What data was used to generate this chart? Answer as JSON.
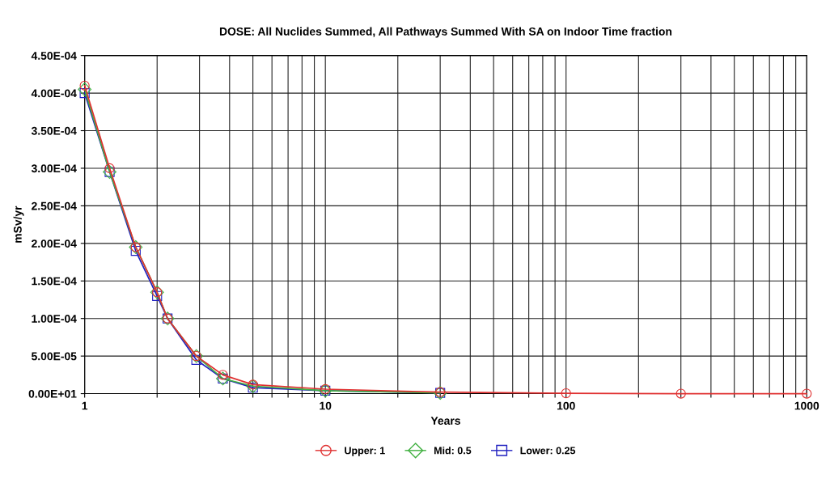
{
  "chart_data": {
    "type": "line",
    "title": "DOSE: All Nuclides Summed, All Pathways Summed With SA on Indoor Time fraction",
    "xlabel": "Years",
    "ylabel": "mSv/yr",
    "log": "x",
    "grid": true,
    "legend": "bottom",
    "xlim": [
      1,
      1000
    ],
    "xticks": [
      1,
      {
        "value": 2,
        "label": null
      },
      {
        "value": 3,
        "label": null
      },
      {
        "value": 4,
        "label": null
      },
      {
        "value": 5,
        "label": null
      },
      {
        "value": 6,
        "label": null
      },
      {
        "value": 7,
        "label": null
      },
      {
        "value": 8,
        "label": null
      },
      {
        "value": 9,
        "label": null
      },
      10,
      {
        "value": 20,
        "label": null
      },
      {
        "value": 30,
        "label": null
      },
      {
        "value": 40,
        "label": null
      },
      {
        "value": 50,
        "label": null
      },
      {
        "value": 60,
        "label": null
      },
      {
        "value": 70,
        "label": null
      },
      {
        "value": 80,
        "label": null
      },
      {
        "value": 90,
        "label": null
      },
      100,
      {
        "value": 200,
        "label": null
      },
      {
        "value": 300,
        "label": null
      },
      {
        "value": 400,
        "label": null
      },
      {
        "value": 500,
        "label": null
      },
      {
        "value": 600,
        "label": null
      },
      {
        "value": 700,
        "label": null
      },
      {
        "value": 800,
        "label": null
      },
      {
        "value": 900,
        "label": null
      },
      1000
    ],
    "ylim": [
      0,
      0.00045
    ],
    "yticks": [
      {
        "value": 0,
        "label": "0.00E+01"
      },
      {
        "value": 5e-05,
        "label": "5.00E-05"
      },
      {
        "value": 0.0001,
        "label": "1.00E-04"
      },
      {
        "value": 0.00015,
        "label": "1.50E-04"
      },
      {
        "value": 0.0002,
        "label": "2.00E-04"
      },
      {
        "value": 0.00025,
        "label": "2.50E-04"
      },
      {
        "value": 0.0003,
        "label": "3.00E-04"
      },
      {
        "value": 0.00035,
        "label": "3.50E-04"
      },
      {
        "value": 0.0004,
        "label": "4.00E-04"
      },
      {
        "value": 0.00045,
        "label": "4.50E-04"
      }
    ],
    "x": [
      1,
      1.27,
      1.63,
      2,
      2.21,
      2.91,
      3.75,
      5,
      10,
      30,
      100,
      300,
      1000
    ],
    "series": [
      {
        "name": "Upper: 1",
        "color": "#e03030",
        "marker": "circle",
        "values": [
          0.00041,
          0.0003,
          0.000195,
          0.000135,
          0.0001,
          5e-05,
          2.5e-05,
          1.2e-05,
          6e-06,
          2e-06,
          5e-07,
          0,
          0
        ]
      },
      {
        "name": "Mid: 0.5",
        "color": "#40b040",
        "marker": "diamond",
        "values": [
          0.000405,
          0.000295,
          0.000195,
          0.000135,
          0.0001,
          5e-05,
          2e-05,
          1e-05,
          4e-06,
          1e-06,
          null,
          null,
          null
        ]
      },
      {
        "name": "Lower: 0.25",
        "color": "#2020c0",
        "marker": "square",
        "values": [
          0.0004,
          0.000295,
          0.00019,
          0.00013,
          0.0001,
          4.5e-05,
          2e-05,
          8e-06,
          4e-06,
          1e-06,
          null,
          null,
          null
        ]
      }
    ]
  }
}
